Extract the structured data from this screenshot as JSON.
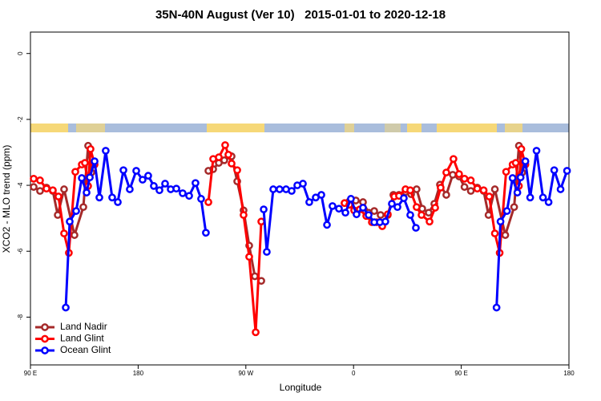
{
  "chart_data": {
    "type": "line",
    "title": "35N-40N August (Ver 10)   2015-01-01 to 2020-12-18",
    "x_label": "Longitude",
    "y_label": "XCO2 - MLO trend (ppm)",
    "xlim": [
      90,
      540
    ],
    "ylim": [
      -9.45,
      0.65
    ],
    "xticks": [
      {
        "value": 90,
        "label": "90 E"
      },
      180,
      {
        "value": 270,
        "label": "90 W"
      },
      0,
      {
        "value": 450,
        "label": "90 E"
      },
      {
        "value": 540,
        "label": "180"
      }
    ],
    "yticks": [
      0,
      -2,
      -4,
      -6,
      -8
    ],
    "legend": "bottom-left",
    "series": [
      {
        "name": "Land Nadir",
        "color": "#a52a2a",
        "x": [
          92.7,
          98,
          103.4,
          108.7,
          112.8,
          118.1,
          126.8,
          134.2,
          138.2,
          140.9,
          null,
          238.7,
          242.7,
          247.4,
          252,
          258.1,
          262.8,
          268.1,
          272.8,
          277.5,
          282.9,
          null,
          352.5,
          356.5,
          361.9,
          367.9,
          372.6,
          377.3,
          382.6,
          388.6,
          393.3,
          398,
          403.4,
          408.1,
          412.7,
          417.4,
          422.8,
          427.5,
          432.2,
          437.5,
          442.9,
          448.2,
          452.7,
          458,
          463.4,
          468.7,
          472.8,
          478.1,
          486.8,
          494.2,
          498.2,
          500.9
        ],
        "values": [
          -4.05,
          -4.17,
          -4.07,
          -4.17,
          -4.9,
          -4.12,
          -5.51,
          -4.66,
          -2.8,
          -3.61,
          null,
          -3.56,
          -3.51,
          -3.32,
          -3.24,
          -3.12,
          -3.88,
          -4.76,
          -5.83,
          -6.76,
          -6.9,
          null,
          -4.54,
          -4.49,
          -4.46,
          -4.51,
          -4.83,
          -4.78,
          -4.9,
          -4.9,
          -4.29,
          -4.29,
          -4.2,
          -4.27,
          -4.12,
          -4.71,
          -4.83,
          -4.56,
          -3.98,
          -4.29,
          -3.68,
          -3.73,
          -4.05,
          -4.17,
          -4.07,
          -4.17,
          -4.9,
          -4.12,
          -5.51,
          -4.66,
          -2.8,
          -3.61
        ]
      },
      {
        "name": "Land Glint",
        "color": "#ff0000",
        "x": [
          92.7,
          98,
          103.4,
          108.7,
          113.4,
          118.1,
          122.1,
          127.5,
          132.9,
          135.5,
          138.2,
          140.2,
          143.6,
          null,
          238.7,
          242.7,
          247.4,
          252.7,
          255.4,
          258.1,
          262.8,
          268.1,
          272.8,
          278.2,
          282.9,
          null,
          352.5,
          356.5,
          360.5,
          365.2,
          370.6,
          375.3,
          379.3,
          384,
          388.6,
          394,
          398,
          403.4,
          407.4,
          412.7,
          416.8,
          423.5,
          428.2,
          432.8,
          437.5,
          443.5,
          448.2,
          452.7,
          458,
          463.4,
          468.7,
          473.4,
          478.1,
          482.1,
          487.5,
          492.9,
          495.5,
          498.2,
          500.2,
          503.6
        ],
        "values": [
          -3.8,
          -3.85,
          -4.1,
          -4.15,
          -4.34,
          -5.46,
          -6.05,
          -3.59,
          -3.37,
          -3.32,
          -4.02,
          -2.9,
          -3.37,
          null,
          -4.51,
          -3.2,
          -3.15,
          -2.78,
          -3.07,
          -3.34,
          -3.54,
          -4.9,
          -6.17,
          -8.46,
          -5.1,
          null,
          -4.54,
          -4.59,
          -4.76,
          -4.73,
          -4.93,
          -5.12,
          -5.12,
          -5.24,
          -4.88,
          -4.34,
          -4.32,
          -4.12,
          -4.15,
          -4.66,
          -4.9,
          -5.1,
          -4.68,
          -4.07,
          -3.61,
          -3.2,
          -3.66,
          -3.8,
          -3.85,
          -4.1,
          -4.15,
          -4.34,
          -5.46,
          -6.05,
          -3.59,
          -3.37,
          -3.32,
          -4.02,
          -2.9,
          -3.37
        ]
      },
      {
        "name": "Ocean Glint",
        "color": "#0000ff",
        "x": [
          119.5,
          122.8,
          128.2,
          132.9,
          136.9,
          139.6,
          143.6,
          147.6,
          152.9,
          158.3,
          163,
          167.7,
          173,
          178.4,
          183.7,
          188.4,
          193.1,
          197.8,
          202.5,
          207.2,
          211.9,
          217.2,
          222.6,
          227.9,
          232.6,
          236.6,
          null,
          284.9,
          287.5,
          292.9,
          298.2,
          303.6,
          308.3,
          313,
          317.7,
          323,
          328.4,
          333.1,
          337.8,
          342.4,
          347.8,
          353.2,
          357.8,
          362.5,
          367.9,
          372.6,
          377.3,
          382,
          386.6,
          392,
          396.7,
          402,
          407.4,
          412.1,
          null,
          479.5,
          482.8,
          488.2,
          492.9,
          496.9,
          499.6,
          503.6,
          507.6,
          512.9,
          518.3,
          523,
          527.7,
          533,
          538.4
        ],
        "values": [
          -7.71,
          -5.1,
          -4.78,
          -3.78,
          -4.22,
          -3.76,
          -3.27,
          -4.37,
          -2.95,
          -4.37,
          -4.51,
          -3.54,
          -4.12,
          -3.56,
          -3.83,
          -3.71,
          -4.02,
          -4.15,
          -3.95,
          -4.12,
          -4.1,
          -4.24,
          -4.32,
          -3.93,
          -4.41,
          -5.44,
          null,
          -4.73,
          -6.02,
          -4.12,
          -4.12,
          -4.12,
          -4.17,
          -4,
          -3.95,
          -4.51,
          -4.37,
          -4.29,
          -5.2,
          -4.63,
          -4.71,
          -4.83,
          -4.41,
          -4.88,
          -4.68,
          -4.9,
          -5.12,
          -5.12,
          -5.1,
          -4.56,
          -4.66,
          -4.39,
          -4.9,
          -5.29,
          null,
          -7.71,
          -5.1,
          -4.78,
          -3.78,
          -4.22,
          -3.76,
          -3.27,
          -4.37,
          -2.95,
          -4.37,
          -4.51,
          -3.54,
          -4.12,
          -3.56
        ]
      }
    ]
  }
}
